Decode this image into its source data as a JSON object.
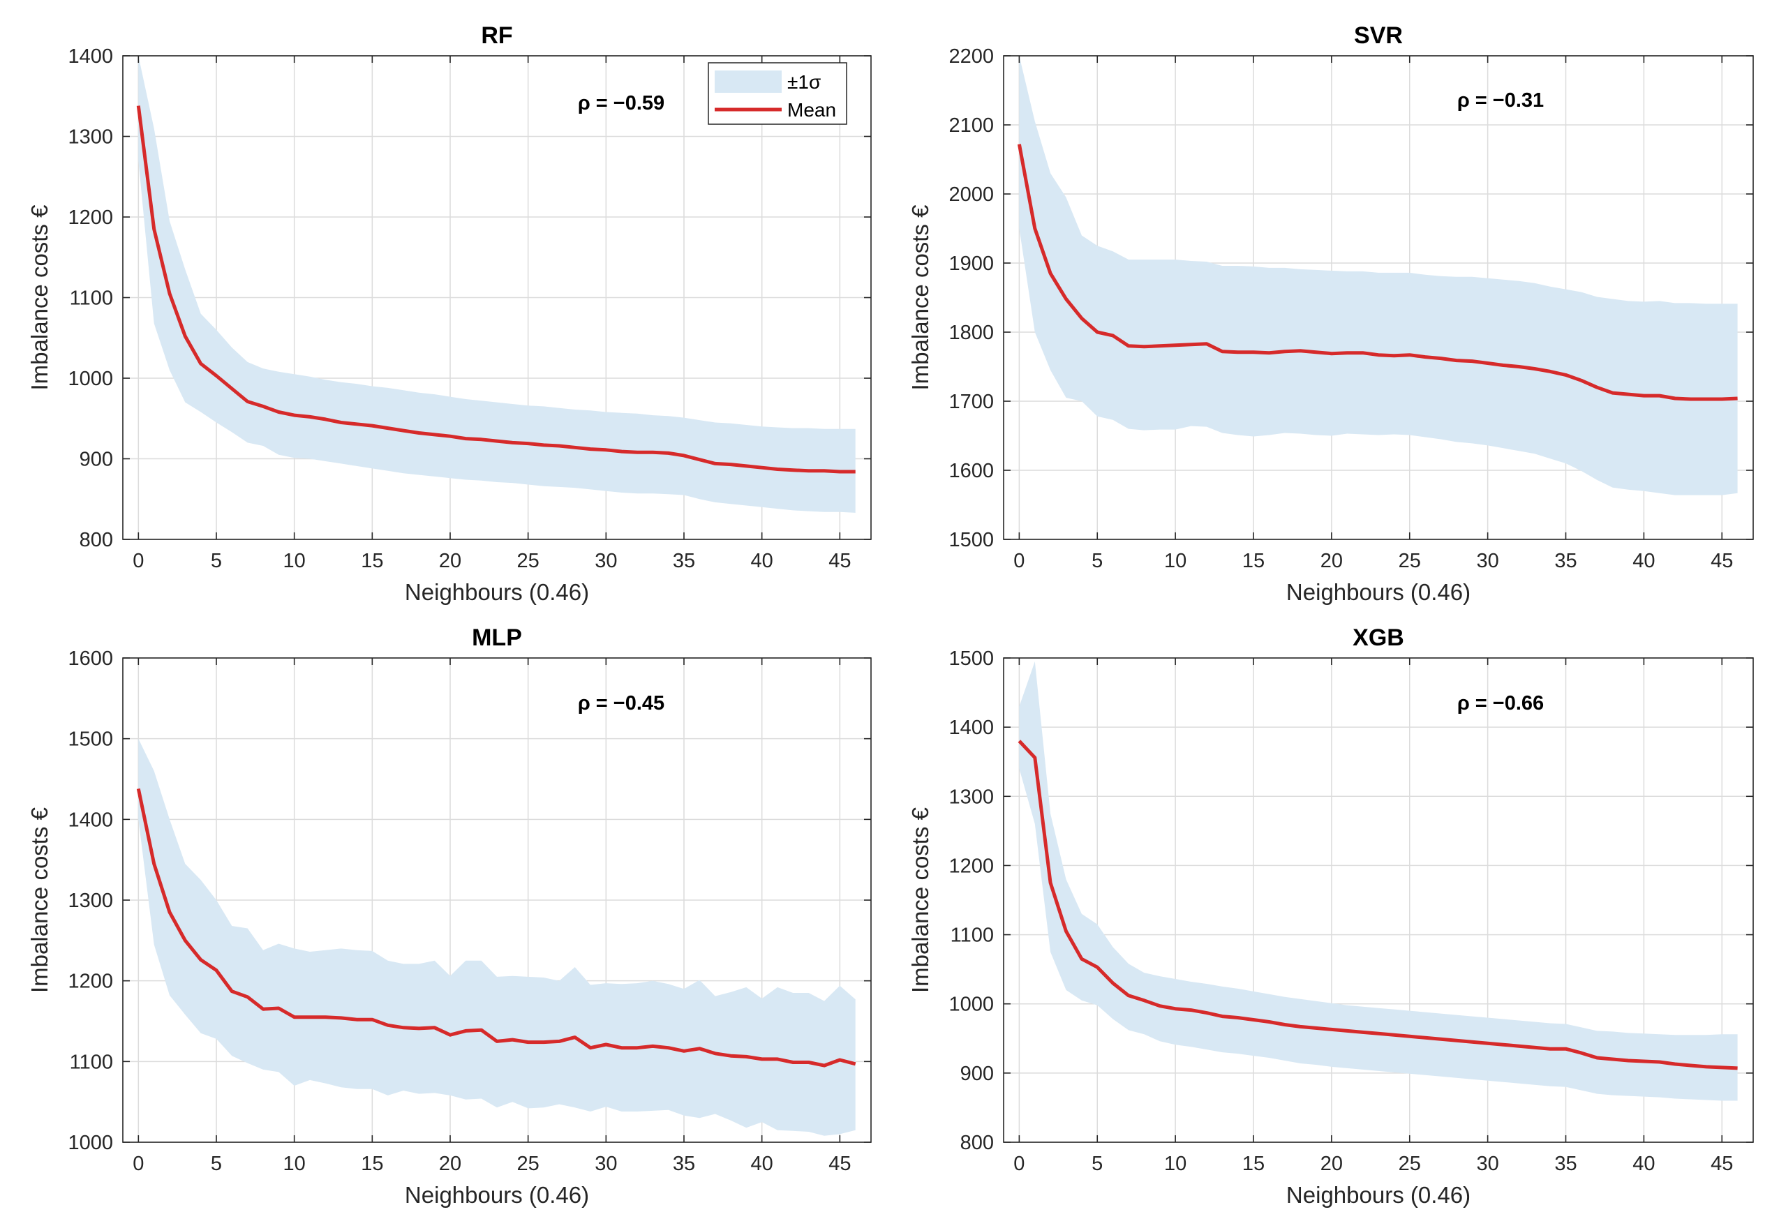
{
  "chart_data": [
    {
      "type": "line",
      "title": "RF",
      "xlabel": "Neighbours (0.46)",
      "ylabel": "Imbalance costs €",
      "xlim": [
        -1,
        47
      ],
      "ylim": [
        800,
        1400
      ],
      "xticks": [
        0,
        5,
        10,
        15,
        20,
        25,
        30,
        35,
        40,
        45
      ],
      "yticks": [
        800,
        900,
        1000,
        1100,
        1200,
        1300,
        1400
      ],
      "annotation": "ρ = −0.59",
      "legend": {
        "band": "±1σ",
        "line": "Mean",
        "position": "top-right"
      },
      "x": [
        0,
        1,
        2,
        3,
        4,
        5,
        6,
        7,
        8,
        9,
        10,
        11,
        12,
        13,
        14,
        15,
        16,
        17,
        18,
        19,
        20,
        21,
        22,
        23,
        24,
        25,
        26,
        27,
        28,
        29,
        30,
        31,
        32,
        33,
        34,
        35,
        36,
        37,
        38,
        39,
        40,
        41,
        42,
        43,
        44,
        45,
        46
      ],
      "series": [
        {
          "name": "Mean",
          "values": [
            1338,
            1185,
            1105,
            1052,
            1018,
            1003,
            987,
            971,
            965,
            958,
            954,
            952,
            949,
            945,
            943,
            941,
            938,
            935,
            932,
            930,
            928,
            925,
            924,
            922,
            920,
            919,
            917,
            916,
            914,
            912,
            911,
            909,
            908,
            908,
            907,
            904,
            899,
            894,
            893,
            891,
            889,
            887,
            886,
            885,
            885,
            884,
            884
          ]
        },
        {
          "name": "upper",
          "values": [
            1400,
            1310,
            1195,
            1135,
            1080,
            1060,
            1038,
            1020,
            1012,
            1008,
            1005,
            1002,
            998,
            995,
            993,
            990,
            988,
            985,
            982,
            980,
            977,
            974,
            972,
            970,
            968,
            966,
            965,
            963,
            961,
            960,
            958,
            957,
            956,
            954,
            953,
            951,
            948,
            945,
            944,
            942,
            940,
            939,
            938,
            938,
            937,
            937,
            937
          ]
        },
        {
          "name": "lower",
          "values": [
            1270,
            1068,
            1010,
            970,
            958,
            945,
            933,
            920,
            916,
            905,
            901,
            900,
            897,
            894,
            891,
            888,
            885,
            882,
            880,
            878,
            876,
            874,
            873,
            871,
            870,
            868,
            866,
            865,
            864,
            862,
            860,
            858,
            857,
            857,
            856,
            855,
            850,
            846,
            844,
            842,
            840,
            838,
            836,
            835,
            834,
            834,
            833
          ]
        }
      ]
    },
    {
      "type": "line",
      "title": "SVR",
      "xlabel": "Neighbours (0.46)",
      "ylabel": "Imbalance costs €",
      "xlim": [
        -1,
        47
      ],
      "ylim": [
        1500,
        2200
      ],
      "xticks": [
        0,
        5,
        10,
        15,
        20,
        25,
        30,
        35,
        40,
        45
      ],
      "yticks": [
        1500,
        1600,
        1700,
        1800,
        1900,
        2000,
        2100,
        2200
      ],
      "annotation": "ρ = −0.31",
      "x": [
        0,
        1,
        2,
        3,
        4,
        5,
        6,
        7,
        8,
        9,
        10,
        11,
        12,
        13,
        14,
        15,
        16,
        17,
        18,
        19,
        20,
        21,
        22,
        23,
        24,
        25,
        26,
        27,
        28,
        29,
        30,
        31,
        32,
        33,
        34,
        35,
        36,
        37,
        38,
        39,
        40,
        41,
        42,
        43,
        44,
        45,
        46
      ],
      "series": [
        {
          "name": "Mean",
          "values": [
            2072,
            1950,
            1885,
            1848,
            1820,
            1800,
            1795,
            1780,
            1779,
            1780,
            1781,
            1782,
            1783,
            1772,
            1771,
            1771,
            1770,
            1772,
            1773,
            1771,
            1769,
            1770,
            1770,
            1767,
            1766,
            1767,
            1764,
            1762,
            1759,
            1758,
            1755,
            1752,
            1750,
            1747,
            1743,
            1738,
            1730,
            1720,
            1712,
            1710,
            1708,
            1708,
            1704,
            1703,
            1703,
            1703,
            1704
          ]
        },
        {
          "name": "upper",
          "values": [
            2200,
            2105,
            2030,
            1995,
            1940,
            1925,
            1917,
            1905,
            1905,
            1905,
            1905,
            1903,
            1902,
            1896,
            1896,
            1895,
            1893,
            1893,
            1891,
            1890,
            1889,
            1888,
            1888,
            1886,
            1886,
            1886,
            1883,
            1881,
            1880,
            1880,
            1878,
            1876,
            1874,
            1871,
            1866,
            1862,
            1858,
            1851,
            1848,
            1845,
            1844,
            1845,
            1842,
            1842,
            1841,
            1841,
            1841
          ]
        },
        {
          "name": "lower",
          "values": [
            1950,
            1800,
            1745,
            1705,
            1700,
            1678,
            1673,
            1660,
            1658,
            1659,
            1659,
            1664,
            1663,
            1654,
            1651,
            1649,
            1651,
            1654,
            1653,
            1651,
            1650,
            1653,
            1652,
            1651,
            1652,
            1651,
            1648,
            1645,
            1641,
            1639,
            1636,
            1632,
            1628,
            1624,
            1617,
            1610,
            1599,
            1586,
            1575,
            1572,
            1570,
            1567,
            1564,
            1564,
            1564,
            1564,
            1567
          ]
        }
      ]
    },
    {
      "type": "line",
      "title": "MLP",
      "xlabel": "Neighbours (0.46)",
      "ylabel": "Imbalance costs €",
      "xlim": [
        -1,
        47
      ],
      "ylim": [
        1000,
        1600
      ],
      "xticks": [
        0,
        5,
        10,
        15,
        20,
        25,
        30,
        35,
        40,
        45
      ],
      "yticks": [
        1000,
        1100,
        1200,
        1300,
        1400,
        1500,
        1600
      ],
      "annotation": "ρ = −0.45",
      "x": [
        0,
        1,
        2,
        3,
        4,
        5,
        6,
        7,
        8,
        9,
        10,
        11,
        12,
        13,
        14,
        15,
        16,
        17,
        18,
        19,
        20,
        21,
        22,
        23,
        24,
        25,
        26,
        27,
        28,
        29,
        30,
        31,
        32,
        33,
        34,
        35,
        36,
        37,
        38,
        39,
        40,
        41,
        42,
        43,
        44,
        45,
        46
      ],
      "series": [
        {
          "name": "Mean",
          "values": [
            1438,
            1345,
            1285,
            1250,
            1226,
            1213,
            1187,
            1180,
            1165,
            1166,
            1155,
            1155,
            1155,
            1154,
            1152,
            1152,
            1145,
            1142,
            1141,
            1142,
            1133,
            1138,
            1139,
            1125,
            1127,
            1124,
            1124,
            1125,
            1130,
            1117,
            1121,
            1117,
            1117,
            1119,
            1117,
            1113,
            1116,
            1110,
            1107,
            1106,
            1103,
            1103,
            1099,
            1099,
            1095,
            1102,
            1097
          ]
        },
        {
          "name": "upper",
          "values": [
            1500,
            1460,
            1400,
            1345,
            1325,
            1300,
            1268,
            1265,
            1238,
            1246,
            1240,
            1236,
            1238,
            1240,
            1238,
            1237,
            1225,
            1221,
            1221,
            1225,
            1206,
            1225,
            1225,
            1205,
            1206,
            1205,
            1204,
            1200,
            1217,
            1195,
            1197,
            1196,
            1197,
            1200,
            1196,
            1190,
            1201,
            1181,
            1186,
            1192,
            1178,
            1192,
            1185,
            1185,
            1175,
            1194,
            1177
          ]
        },
        {
          "name": "lower",
          "values": [
            1400,
            1245,
            1182,
            1158,
            1135,
            1128,
            1107,
            1098,
            1090,
            1087,
            1070,
            1077,
            1073,
            1068,
            1066,
            1066,
            1058,
            1064,
            1060,
            1061,
            1058,
            1053,
            1054,
            1043,
            1050,
            1042,
            1043,
            1047,
            1043,
            1038,
            1044,
            1038,
            1038,
            1039,
            1040,
            1033,
            1030,
            1035,
            1027,
            1018,
            1025,
            1015,
            1014,
            1013,
            1008,
            1010,
            1015
          ]
        }
      ]
    },
    {
      "type": "line",
      "title": "XGB",
      "xlabel": "Neighbours (0.46)",
      "ylabel": "Imbalance costs €",
      "xlim": [
        -1,
        47
      ],
      "ylim": [
        800,
        1500
      ],
      "xticks": [
        0,
        5,
        10,
        15,
        20,
        25,
        30,
        35,
        40,
        45
      ],
      "yticks": [
        800,
        900,
        1000,
        1100,
        1200,
        1300,
        1400,
        1500
      ],
      "annotation": "ρ = −0.66",
      "x": [
        0,
        1,
        2,
        3,
        4,
        5,
        6,
        7,
        8,
        9,
        10,
        11,
        12,
        13,
        14,
        15,
        16,
        17,
        18,
        19,
        20,
        21,
        22,
        23,
        24,
        25,
        26,
        27,
        28,
        29,
        30,
        31,
        32,
        33,
        34,
        35,
        36,
        37,
        38,
        39,
        40,
        41,
        42,
        43,
        44,
        45,
        46
      ],
      "series": [
        {
          "name": "Mean",
          "values": [
            1380,
            1356,
            1175,
            1105,
            1065,
            1053,
            1030,
            1012,
            1005,
            997,
            993,
            991,
            987,
            982,
            980,
            977,
            974,
            970,
            967,
            965,
            963,
            961,
            959,
            957,
            955,
            953,
            951,
            949,
            947,
            945,
            943,
            941,
            939,
            937,
            935,
            935,
            929,
            922,
            920,
            918,
            917,
            916,
            913,
            911,
            909,
            908,
            907
          ]
        },
        {
          "name": "upper",
          "values": [
            1430,
            1495,
            1275,
            1180,
            1130,
            1115,
            1082,
            1058,
            1045,
            1040,
            1036,
            1032,
            1029,
            1025,
            1022,
            1018,
            1014,
            1010,
            1007,
            1004,
            1001,
            998,
            996,
            994,
            992,
            990,
            988,
            986,
            984,
            982,
            980,
            978,
            976,
            974,
            972,
            971,
            966,
            961,
            960,
            958,
            957,
            956,
            955,
            955,
            955,
            956,
            956
          ]
        },
        {
          "name": "lower",
          "values": [
            1340,
            1260,
            1075,
            1020,
            1005,
            998,
            978,
            962,
            956,
            946,
            941,
            938,
            934,
            930,
            928,
            925,
            922,
            918,
            914,
            912,
            909,
            907,
            905,
            903,
            901,
            899,
            897,
            895,
            893,
            891,
            889,
            887,
            885,
            883,
            881,
            880,
            875,
            870,
            868,
            867,
            866,
            865,
            863,
            862,
            861,
            860,
            860
          ]
        }
      ]
    }
  ]
}
